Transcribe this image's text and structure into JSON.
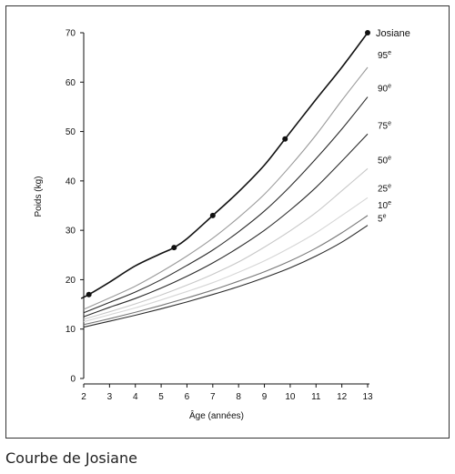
{
  "caption": "Courbe de Josiane",
  "chart_data": {
    "type": "line",
    "title": "",
    "xlabel": "Âge (années)",
    "ylabel": "Poids (kg)",
    "xlim": [
      2,
      13
    ],
    "ylim": [
      0,
      70
    ],
    "xticks": [
      "2",
      "3",
      "4",
      "5",
      "6",
      "7",
      "8",
      "9",
      "10",
      "11",
      "12",
      "13"
    ],
    "yticks": [
      "0",
      "10",
      "20",
      "30",
      "40",
      "50",
      "60",
      "70"
    ],
    "grid": false,
    "colors": {
      "subject": "#111111",
      "p95": "#9a9a9a",
      "p90": "#2b2b2b",
      "p75": "#2b2b2b",
      "p50": "#c8c8c8",
      "p25": "#d6d6d6",
      "p10": "#777777",
      "p5": "#2b2b2b"
    },
    "x": [
      2,
      3,
      4,
      5,
      6,
      7,
      8,
      9,
      10,
      11,
      12,
      13
    ],
    "series": [
      {
        "key": "p95",
        "name": "95e",
        "base": "95",
        "sup": "e",
        "values": [
          14,
          16.3,
          18.7,
          21.6,
          24.8,
          28.4,
          32.6,
          37.3,
          43,
          49.3,
          56.3,
          63
        ]
      },
      {
        "key": "p90",
        "name": "90e",
        "base": "90",
        "sup": "e",
        "values": [
          13.3,
          15.4,
          17.5,
          20,
          22.9,
          26,
          29.7,
          33.9,
          38.9,
          44.5,
          50.5,
          57
        ]
      },
      {
        "key": "p75",
        "name": "75e",
        "base": "75",
        "sup": "e",
        "values": [
          12.5,
          14.4,
          16.2,
          18.3,
          20.7,
          23.4,
          26.5,
          30,
          34.1,
          38.7,
          44,
          49.5
        ]
      },
      {
        "key": "p50",
        "name": "50e",
        "base": "50",
        "sup": "e",
        "values": [
          12,
          13.5,
          15.1,
          16.9,
          18.9,
          21.1,
          23.6,
          26.6,
          29.9,
          33.6,
          38,
          42.5
        ]
      },
      {
        "key": "p25",
        "name": "25e",
        "base": "25",
        "sup": "e",
        "values": [
          11.5,
          12.9,
          14.3,
          15.9,
          17.6,
          19.4,
          21.5,
          23.8,
          26.5,
          29.5,
          33,
          36.6
        ]
      },
      {
        "key": "p10",
        "name": "10e",
        "base": "10",
        "sup": "e",
        "values": [
          10.9,
          12.1,
          13.4,
          14.8,
          16.3,
          17.9,
          19.7,
          21.6,
          23.8,
          26.4,
          29.5,
          33
        ]
      },
      {
        "key": "p5",
        "name": "5e",
        "base": "5",
        "sup": "e",
        "values": [
          10.4,
          11.6,
          12.8,
          14.1,
          15.5,
          17,
          18.6,
          20.4,
          22.4,
          24.8,
          27.6,
          31
        ]
      }
    ],
    "subject": {
      "name": "Josiane",
      "x": [
        1.9,
        2.2,
        3,
        4,
        5,
        5.5,
        6,
        7,
        8,
        9,
        9.8,
        11,
        12,
        13
      ],
      "values": [
        16.2,
        17,
        19.5,
        22.8,
        25.3,
        26.5,
        28.3,
        33,
        37.8,
        43.2,
        48.5,
        56.5,
        63,
        70
      ],
      "points": [
        {
          "x": 2.2,
          "y": 17
        },
        {
          "x": 5.5,
          "y": 26.5
        },
        {
          "x": 7,
          "y": 33
        },
        {
          "x": 9.8,
          "y": 48.5
        },
        {
          "x": 13,
          "y": 70
        }
      ]
    }
  }
}
